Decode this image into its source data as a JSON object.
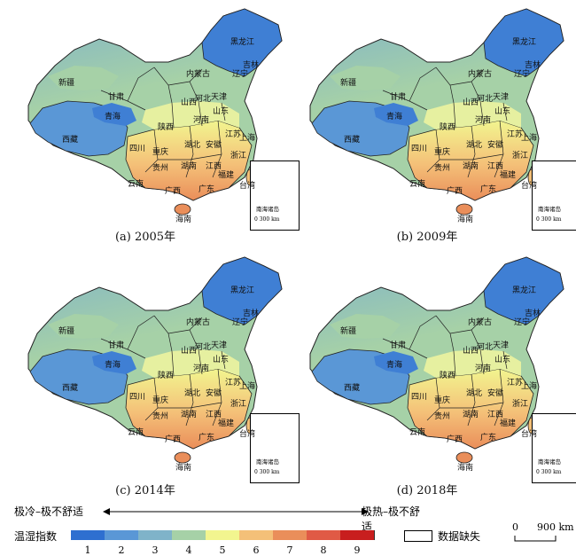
{
  "panels": [
    {
      "id": "a",
      "caption": "(a) 2005年"
    },
    {
      "id": "b",
      "caption": "(b) 2009年"
    },
    {
      "id": "c",
      "caption": "(c) 2014年"
    },
    {
      "id": "d",
      "caption": "(d) 2018年"
    }
  ],
  "province_labels": {
    "heilongjiang": "黑龙江",
    "jilin": "吉林",
    "liaoning": "辽宁",
    "neimenggu": "内蒙古",
    "xinjiang": "新疆",
    "gansu": "甘肃",
    "qinghai": "青海",
    "xizang": "西藏",
    "shanxi": "山西",
    "shaanxi": "陕西",
    "henan": "河南",
    "shandong": "山东",
    "hebei": "河北",
    "tianjin": "天津",
    "sichuan": "四川",
    "chongqing": "重庆",
    "hubei": "湖北",
    "anhui": "安徽",
    "jiangsu": "江苏",
    "shanghai": "上海",
    "guizhou": "贵州",
    "hunan": "湖南",
    "jiangxi": "江西",
    "zhejiang": "浙江",
    "fujian": "福建",
    "yunnan": "云南",
    "guangxi": "广西",
    "guangdong": "广东",
    "taiwan": "台湾",
    "hainan": "海南"
  },
  "inset": {
    "label": "南海诸岛",
    "scale": "0 300 km"
  },
  "legend": {
    "left_text": "极冷–极不舒适",
    "right_text": "极热–极不舒适",
    "title": "温湿指数",
    "classes": [
      "1",
      "2",
      "3",
      "4",
      "5",
      "6",
      "7",
      "8",
      "9"
    ],
    "class_colors": [
      "#2e6fd0",
      "#5a97d6",
      "#7fb3c9",
      "#a6d1a7",
      "#f2f58f",
      "#f4c078",
      "#ea8e5a",
      "#e05a45",
      "#c81e1e"
    ],
    "missing_label": "数据缺失",
    "scale_zero": "0",
    "scale_text": "900 km"
  }
}
